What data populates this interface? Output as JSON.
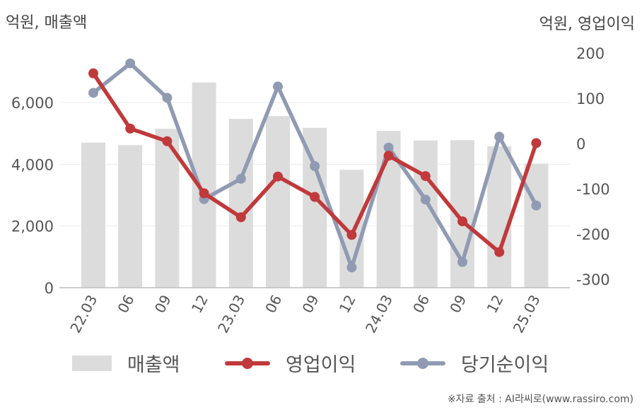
{
  "units": {
    "left": "억원, 매출액",
    "right": "억원, 영업이익"
  },
  "legend": {
    "revenue": "매출액",
    "operating_profit": "영업이익",
    "net_income": "당기순이익"
  },
  "source": "※자료 출처 : AI라씨로(www.rassiro.com)",
  "colors": {
    "revenue_bar": "#dcdcdc",
    "operating_profit": "#c0393b",
    "net_income": "#909bb3"
  },
  "chart_data": {
    "type": "bar+line",
    "categories": [
      "22.03",
      "06",
      "09",
      "12",
      "23.03",
      "06",
      "09",
      "12",
      "24.03",
      "06",
      "09",
      "12",
      "25.03"
    ],
    "left_axis": {
      "ticks": [
        "0",
        "2,000",
        "4,000",
        "6,000"
      ],
      "ylim": [
        0,
        7500
      ]
    },
    "right_axis": {
      "ticks": [
        "-300",
        "-200",
        "-100",
        "0",
        "100",
        "200"
      ],
      "ylim": [
        -320,
        220
      ]
    },
    "series": [
      {
        "name": "매출액",
        "type": "bar",
        "axis": "left",
        "values": [
          4700,
          4620,
          5150,
          6650,
          5470,
          5560,
          5180,
          3820,
          5080,
          4770,
          4780,
          4580,
          4020
        ]
      },
      {
        "name": "영업이익",
        "type": "line",
        "axis": "right",
        "values": [
          155,
          33,
          5,
          -110,
          -163,
          -73,
          -118,
          -202,
          -27,
          -72,
          -172,
          -240,
          1
        ]
      },
      {
        "name": "당기순이익",
        "type": "line",
        "axis": "right",
        "values": [
          112,
          177,
          101,
          -123,
          -78,
          126,
          -50,
          -274,
          -9,
          -124,
          -262,
          15,
          -137
        ]
      }
    ],
    "grid": true
  }
}
